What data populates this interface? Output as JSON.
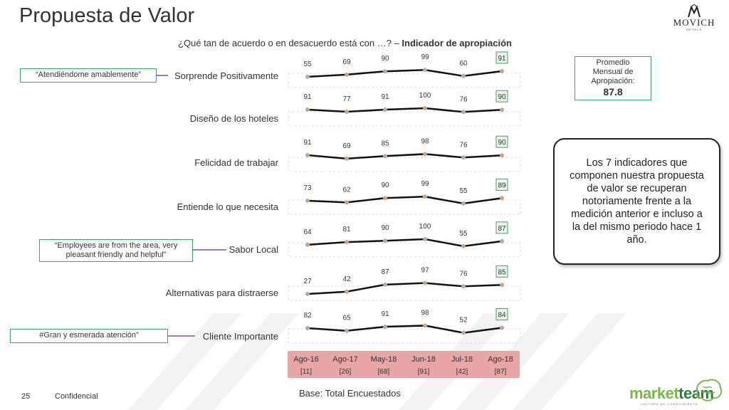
{
  "header": {
    "title": "Propuesta de Valor",
    "question": "¿Qué tan de acuerdo o en desacuerdo está con …? –",
    "question_bold": "Indicador de apropiación"
  },
  "brand": {
    "name": "MOVICH",
    "sub": "HOTELS"
  },
  "average_box": {
    "line1": "Promedio",
    "line2": "Mensual de",
    "line3": "Apropiación:",
    "value": "87.8"
  },
  "callout": "Los 7 indicadores que componen nuestra propuesta de valor se recuperan notoriamente frente a la medición anterior e incluso a la del mismo periodo hace 1 año.",
  "quotes": {
    "q1": "“Atendiéndome amablemente”",
    "q2": "“Employees are from the area, very pleasant friendly and helpful”",
    "q3": "#Gran y esmerada atención”"
  },
  "footer": {
    "page": "25",
    "confidential": "Confidencial",
    "base": "Base: Total Encuestados",
    "logo_a": "market",
    "logo_b": "team",
    "logo_sub": "CULTURA DE CONOCIMIENTO"
  },
  "colors": {
    "line": "#111111",
    "marker": "#c8a68a",
    "highlight_border": "#3aa36a",
    "highlight_fill": "#eaf6ea",
    "axis_band": "#e8a6a6",
    "quote_border": "#3aa36a",
    "connector": "#7a4fa0"
  },
  "chart_data": {
    "type": "line",
    "categories": [
      "Ago-16",
      "Ago-17",
      "May-18",
      "Jun-18",
      "Jul-18",
      "Ago-18"
    ],
    "base_counts": [
      "[11]",
      "[26]",
      "[68]",
      "[91]",
      "[42]",
      "[87]"
    ],
    "ylim": [
      0,
      100
    ],
    "highlight_last": true,
    "series": [
      {
        "name": "Sorprende Positivamente",
        "values": [
          55,
          69,
          90,
          99,
          60,
          91
        ]
      },
      {
        "name": "Diseño de los hoteles",
        "values": [
          91,
          77,
          91,
          100,
          76,
          90
        ]
      },
      {
        "name": "Felicidad de trabajar",
        "values": [
          91,
          69,
          85,
          98,
          76,
          90
        ]
      },
      {
        "name": "Entiende lo que necesita",
        "values": [
          73,
          62,
          90,
          99,
          55,
          89
        ]
      },
      {
        "name": "Sabor Local",
        "values": [
          64,
          81,
          90,
          100,
          55,
          87
        ]
      },
      {
        "name": "Alternativas para distraerse",
        "values": [
          27,
          42,
          87,
          97,
          76,
          85
        ]
      },
      {
        "name": "Cliente Importante",
        "values": [
          82,
          65,
          91,
          98,
          52,
          84
        ]
      }
    ]
  }
}
